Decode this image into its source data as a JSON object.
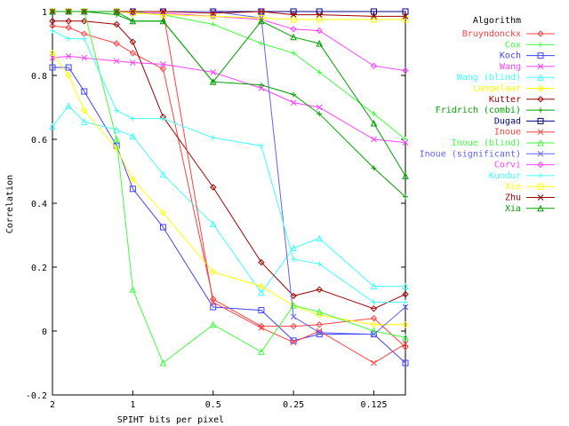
{
  "chart_data": {
    "type": "line",
    "title": "",
    "xlabel": "SPIHT bits per pixel",
    "ylabel": "Correlation",
    "x_scale": "log",
    "x_reversed": true,
    "xlim": [
      2,
      0.0952
    ],
    "ylim": [
      -0.2,
      1
    ],
    "x_ticks": [
      {
        "value": 2,
        "label": "2"
      },
      {
        "value": 1,
        "label": "1"
      },
      {
        "value": 0.5,
        "label": "0.5"
      },
      {
        "value": 0.25,
        "label": "0.25"
      },
      {
        "value": 0.125,
        "label": "0.125"
      }
    ],
    "y_ticks": [
      {
        "value": -0.2,
        "label": "-0.2"
      },
      {
        "value": 0,
        "label": "0"
      },
      {
        "value": 0.2,
        "label": "0.2"
      },
      {
        "value": 0.4,
        "label": "0.4"
      },
      {
        "value": 0.6,
        "label": "0.6"
      },
      {
        "value": 0.8,
        "label": "0.8"
      },
      {
        "value": 1,
        "label": "1"
      }
    ],
    "legend_title": "Algorithm",
    "legend_position": "right",
    "x": [
      2,
      1.74,
      1.52,
      1.15,
      1,
      0.77,
      0.5,
      0.33,
      0.25,
      0.2,
      0.125,
      0.0952
    ],
    "series": [
      {
        "name": "Bruyndonckx",
        "color": "#ff4040",
        "marker": "diamond",
        "values": [
          0.955,
          0.95,
          0.93,
          0.9,
          0.87,
          0.82,
          0.1,
          0.015,
          0.015,
          0.02,
          0.04,
          -0.05
        ]
      },
      {
        "name": "Cox",
        "color": "#40ff40",
        "marker": "plus",
        "values": [
          1.0,
          1.0,
          1.0,
          1.0,
          1.0,
          0.99,
          0.96,
          0.9,
          0.87,
          0.81,
          0.68,
          0.6
        ]
      },
      {
        "name": "Koch",
        "color": "#4040ff",
        "marker": "square",
        "values": [
          0.825,
          0.825,
          0.75,
          0.58,
          0.445,
          0.325,
          0.075,
          0.065,
          -0.03,
          -0.01,
          -0.01,
          -0.1
        ]
      },
      {
        "name": "Wang",
        "color": "#ff40ff",
        "marker": "x",
        "values": [
          0.855,
          0.86,
          0.855,
          0.845,
          0.84,
          0.835,
          0.81,
          0.76,
          0.715,
          0.7,
          0.6,
          0.59
        ]
      },
      {
        "name": "Wang (blind)",
        "color": "#40ffff",
        "marker": "triangle",
        "values": [
          0.64,
          0.705,
          0.655,
          0.63,
          0.61,
          0.49,
          0.335,
          0.12,
          0.26,
          0.29,
          0.14,
          0.14
        ]
      },
      {
        "name": "Langelaar",
        "color": "#ffff00",
        "marker": "diamond",
        "values": [
          0.87,
          0.8,
          0.69,
          0.57,
          0.475,
          0.37,
          0.185,
          0.14,
          0.08,
          0.05,
          0.02,
          0.02
        ]
      },
      {
        "name": "Kutter",
        "color": "#a00000",
        "marker": "diamond",
        "values": [
          0.97,
          0.97,
          0.97,
          0.96,
          0.905,
          0.67,
          0.45,
          0.215,
          0.11,
          0.13,
          0.07,
          0.115
        ]
      },
      {
        "name": "Fridrich (combi)",
        "color": "#00a000",
        "marker": "plus",
        "values": [
          1.0,
          1.0,
          1.0,
          0.99,
          0.97,
          0.97,
          0.78,
          0.77,
          0.74,
          0.68,
          0.51,
          0.42
        ]
      },
      {
        "name": "Dugad",
        "color": "#000080",
        "marker": "square",
        "values": [
          1.0,
          1.0,
          1.0,
          1.0,
          1.0,
          1.0,
          1.0,
          1.0,
          1.0,
          1.0,
          1.0,
          1.0
        ]
      },
      {
        "name": "Inoue",
        "color": "#ff4040",
        "marker": "x",
        "values": [
          1.0,
          1.0,
          1.0,
          1.0,
          1.0,
          1.0,
          0.09,
          0.01,
          -0.035,
          0.0,
          -0.1,
          -0.04
        ]
      },
      {
        "name": "Inoue (blind)",
        "color": "#40ff40",
        "marker": "triangle",
        "values": [
          1.0,
          1.0,
          1.0,
          0.6,
          0.13,
          -0.1,
          0.02,
          -0.065,
          0.08,
          0.06,
          0.0,
          -0.02
        ]
      },
      {
        "name": "Inoue (significant)",
        "color": "#6060ff",
        "marker": "x",
        "values": [
          1.0,
          1.0,
          1.0,
          1.0,
          1.0,
          1.0,
          1.0,
          0.98,
          0.045,
          -0.005,
          -0.01,
          0.075
        ]
      },
      {
        "name": "Corvi",
        "color": "#ff40ff",
        "marker": "diamond",
        "values": [
          1.0,
          1.0,
          1.0,
          1.0,
          0.995,
          0.995,
          0.985,
          0.975,
          0.945,
          0.94,
          0.83,
          0.815
        ]
      },
      {
        "name": "Kundur",
        "color": "#40ffff",
        "marker": "plus",
        "values": [
          0.94,
          0.915,
          0.915,
          0.69,
          0.665,
          0.665,
          0.605,
          0.58,
          0.225,
          0.21,
          0.09,
          0.09
        ]
      },
      {
        "name": "Xie",
        "color": "#ffff00",
        "marker": "square",
        "values": [
          1.0,
          1.0,
          1.0,
          1.0,
          0.995,
          0.99,
          0.985,
          0.98,
          0.975,
          0.975,
          0.975,
          0.975
        ]
      },
      {
        "name": "Zhu",
        "color": "#a00000",
        "marker": "x",
        "values": [
          1.0,
          1.0,
          1.0,
          1.0,
          1.0,
          1.0,
          0.995,
          1.0,
          0.99,
          0.99,
          0.985,
          0.985
        ]
      },
      {
        "name": "Xia",
        "color": "#00a000",
        "marker": "triangle",
        "values": [
          1.0,
          1.0,
          1.0,
          1.0,
          0.97,
          0.97,
          0.78,
          0.97,
          0.92,
          0.9,
          0.65,
          0.485
        ]
      }
    ]
  }
}
